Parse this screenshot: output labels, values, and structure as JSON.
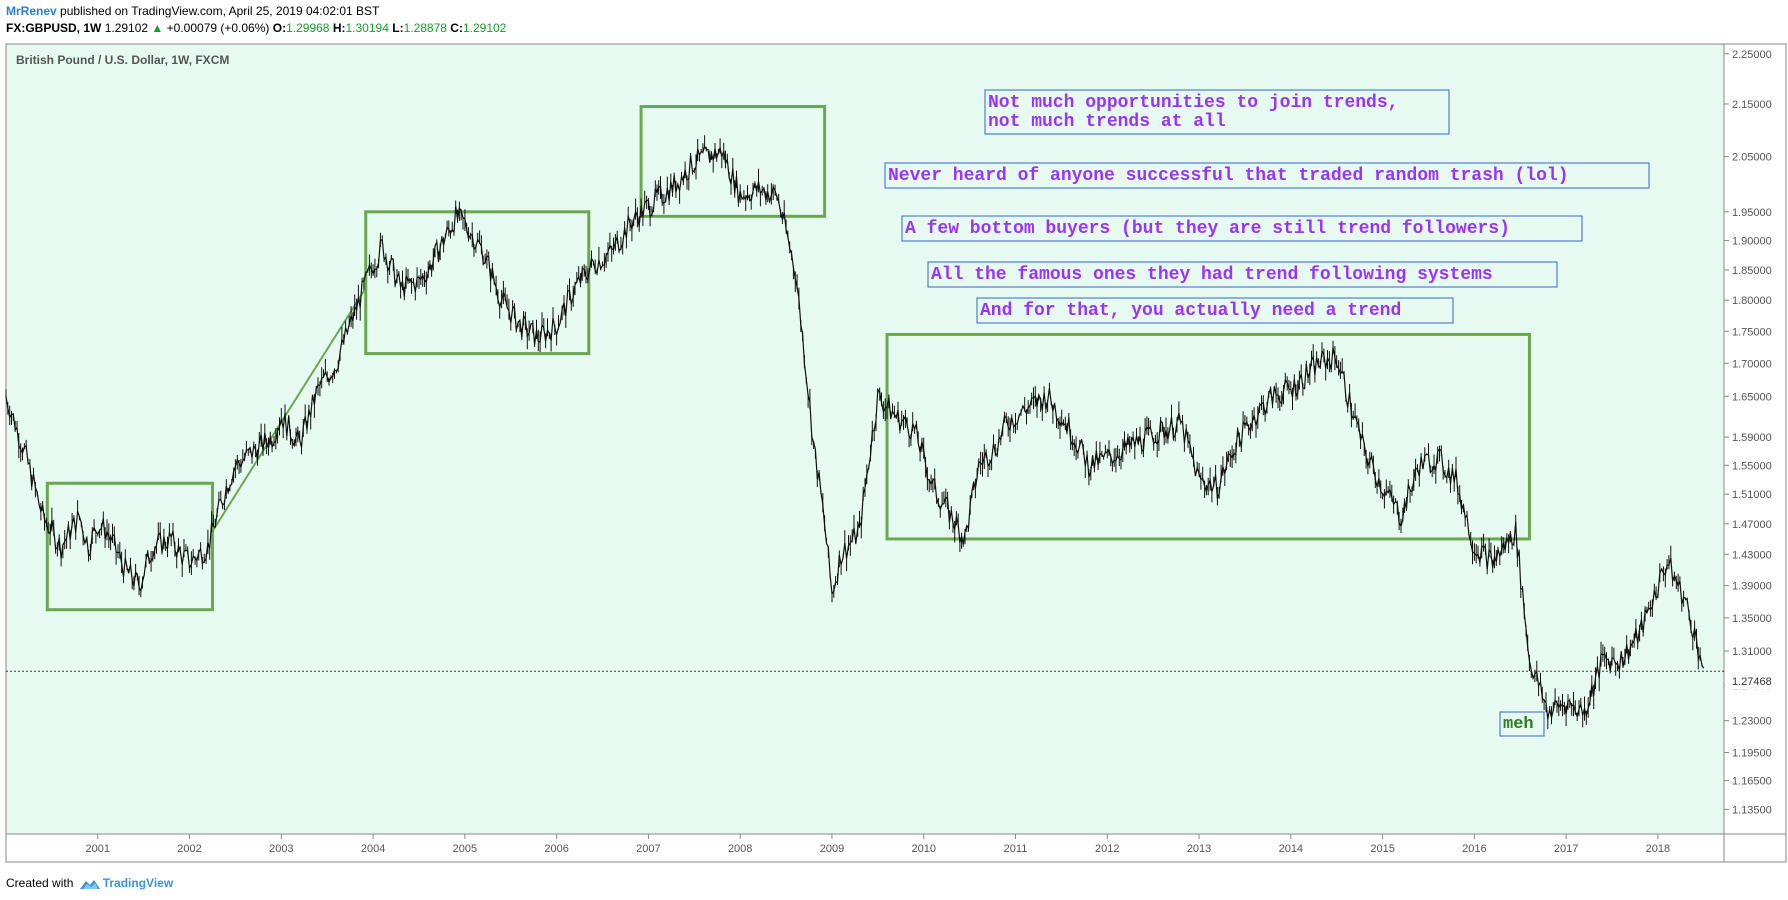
{
  "header": {
    "author": "MrRenev",
    "published_text": " published on TradingView.com, April 25, 2019 04:02:01 BST",
    "symbol_line": "FX:GBPUSD, 1W",
    "last": "1.29102",
    "change": "+0.00079 (+0.06%)",
    "o_label": "O:",
    "o_value": "1.29968",
    "h_label": "H:",
    "h_value": "1.30194",
    "l_label": "L:",
    "l_value": "1.28878",
    "c_label": "C:",
    "c_value": "1.29102"
  },
  "footer": {
    "created_with": "Created with",
    "brand": "TradingView"
  },
  "colors": {
    "plot_bg": "#e7faf1",
    "price": "#111111",
    "box": "#6aa84f",
    "note_text": "#9933ff",
    "note_border": "#3366cc",
    "meh_text": "#2e7d1f",
    "axis_text": "#555555"
  },
  "chart_data": {
    "type": "line",
    "title": "British Pound / U.S. Dollar, 1W, FXCM",
    "xlabel": "",
    "ylabel": "",
    "ylim": [
      1.11,
      2.27
    ],
    "y_scale": "log",
    "grid": false,
    "last_price_label": "1.27468",
    "y_ticks": [
      "2.25000",
      "2.15000",
      "2.05000",
      "1.95000",
      "1.90000",
      "1.85000",
      "1.80000",
      "1.75000",
      "1.70000",
      "1.65000",
      "1.59000",
      "1.55000",
      "1.51000",
      "1.47000",
      "1.43000",
      "1.39000",
      "1.35000",
      "1.31000",
      "1.27000",
      "1.23000",
      "1.19500",
      "1.16500",
      "1.13500"
    ],
    "x_ticks": [
      "2001",
      "2002",
      "2003",
      "2004",
      "2005",
      "2006",
      "2007",
      "2008",
      "2009",
      "2010",
      "2011",
      "2012",
      "2013",
      "2014",
      "2015",
      "2016",
      "2017",
      "2018"
    ],
    "series": [
      {
        "x": [
          2000.0,
          2000.2,
          2000.4,
          2000.5,
          2000.6,
          2000.8,
          2000.9,
          2001.0,
          2001.1,
          2001.3,
          2001.45,
          2001.6,
          2001.8,
          2001.9,
          2002.0,
          2002.2,
          2002.4,
          2002.5,
          2002.7,
          2002.9,
          2003.0,
          2003.2,
          2003.4,
          2003.6,
          2003.8,
          2004.0,
          2004.1,
          2004.3,
          2004.5,
          2004.6,
          2004.9,
          2005.0,
          2005.2,
          2005.4,
          2005.6,
          2005.8,
          2006.0,
          2006.2,
          2006.4,
          2006.6,
          2006.8,
          2007.0,
          2007.3,
          2007.5,
          2007.8,
          2008.0,
          2008.2,
          2008.4,
          2008.6,
          2008.8,
          2008.9,
          2009.0,
          2009.1,
          2009.3,
          2009.5,
          2009.7,
          2009.9,
          2010.1,
          2010.3,
          2010.45,
          2010.6,
          2010.8,
          2010.9,
          2011.1,
          2011.35,
          2011.6,
          2011.8,
          2012.0,
          2012.3,
          2012.6,
          2012.8,
          2013.0,
          2013.2,
          2013.4,
          2013.6,
          2013.8,
          2014.0,
          2014.3,
          2014.5,
          2014.6,
          2014.8,
          2015.0,
          2015.2,
          2015.4,
          2015.6,
          2015.8,
          2016.0,
          2016.2,
          2016.45,
          2016.6,
          2016.8,
          2017.0,
          2017.2,
          2017.4,
          2017.6,
          2017.8,
          2018.0,
          2018.1,
          2018.3,
          2018.5
        ],
        "y": [
          1.65,
          1.57,
          1.48,
          1.46,
          1.44,
          1.48,
          1.44,
          1.47,
          1.46,
          1.41,
          1.39,
          1.44,
          1.45,
          1.43,
          1.42,
          1.44,
          1.52,
          1.55,
          1.57,
          1.59,
          1.62,
          1.58,
          1.66,
          1.7,
          1.78,
          1.86,
          1.89,
          1.82,
          1.83,
          1.85,
          1.94,
          1.93,
          1.88,
          1.8,
          1.76,
          1.74,
          1.76,
          1.82,
          1.86,
          1.88,
          1.93,
          1.96,
          2.0,
          2.04,
          2.06,
          1.98,
          1.99,
          1.98,
          1.85,
          1.58,
          1.49,
          1.38,
          1.43,
          1.46,
          1.65,
          1.62,
          1.6,
          1.52,
          1.48,
          1.45,
          1.55,
          1.58,
          1.61,
          1.63,
          1.65,
          1.6,
          1.55,
          1.56,
          1.58,
          1.6,
          1.61,
          1.53,
          1.52,
          1.58,
          1.62,
          1.65,
          1.66,
          1.7,
          1.71,
          1.66,
          1.57,
          1.52,
          1.48,
          1.55,
          1.56,
          1.53,
          1.44,
          1.42,
          1.46,
          1.3,
          1.24,
          1.25,
          1.24,
          1.3,
          1.3,
          1.33,
          1.39,
          1.42,
          1.37,
          1.29
        ]
      }
    ],
    "boxes": [
      {
        "x": [
          2000.45,
          2002.25
        ],
        "y": [
          1.36,
          1.525
        ]
      },
      {
        "x": [
          2003.92,
          2006.35
        ],
        "y": [
          1.715,
          1.95
        ]
      },
      {
        "x": [
          2006.92,
          2008.92
        ],
        "y": [
          1.942,
          2.145
        ]
      },
      {
        "x": [
          2009.6,
          2016.6
        ],
        "y": [
          1.45,
          1.745
        ]
      }
    ],
    "trend_segment": {
      "x": [
        2002.25,
        2003.92
      ],
      "y": [
        1.46,
        1.82
      ]
    },
    "annotations": [
      {
        "lines": [
          "Not much opportunities to join trends,",
          "not much trends at all"
        ]
      },
      {
        "lines": [
          "Never heard of anyone successful that traded random trash (lol)"
        ]
      },
      {
        "lines": [
          "A few bottom buyers (but they are still trend followers)"
        ]
      },
      {
        "lines": [
          "All the famous ones they had trend following systems"
        ]
      },
      {
        "lines": [
          "And for that, you actually need a trend"
        ]
      },
      {
        "lines": [
          "meh"
        ]
      }
    ]
  }
}
